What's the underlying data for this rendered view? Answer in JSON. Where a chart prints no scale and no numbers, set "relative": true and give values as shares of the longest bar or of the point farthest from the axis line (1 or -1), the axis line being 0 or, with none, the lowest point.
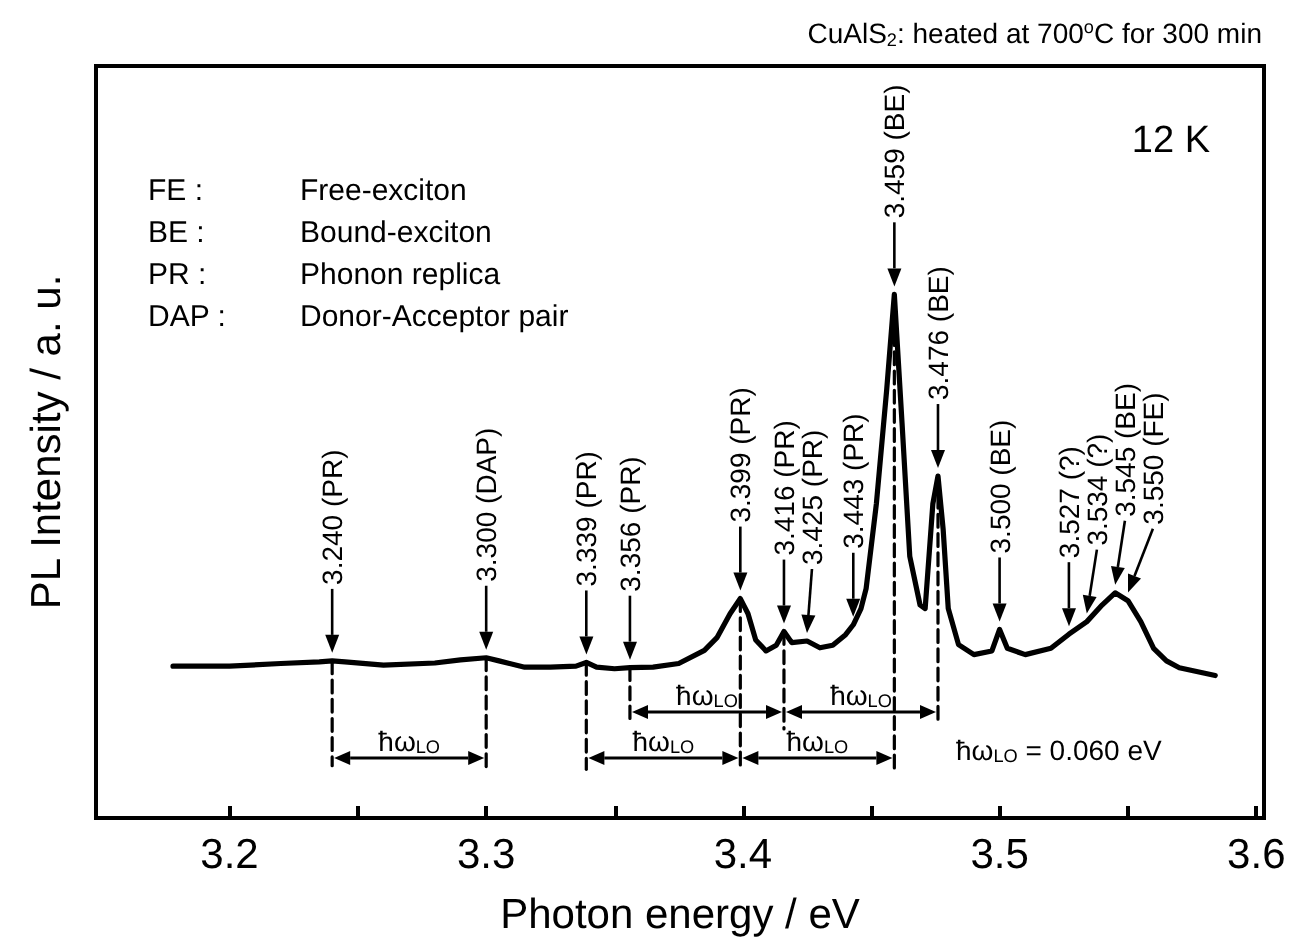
{
  "chart_data": {
    "type": "line",
    "title": "CuAlS$_{2}$: heated at 700$^{o}$C for 300 min",
    "subtitle": "12 K",
    "xlabel": "Photon energy / eV",
    "ylabel": "PL Intensity / a. u.",
    "relative": true,
    "tick_labels": "x",
    "xlim": [
      3.148,
      3.603
    ],
    "xticks": [
      3.2,
      {
        "value": 3.25,
        "label": null
      },
      3.3,
      {
        "value": 3.35,
        "label": null
      },
      3.4,
      {
        "value": 3.45,
        "label": null
      },
      3.5,
      {
        "value": 3.55,
        "label": null
      },
      3.6
    ],
    "series": [
      {
        "color": "#000000",
        "marker": "none",
        "line_style": "solid",
        "x": [
          3.178,
          3.2,
          3.22,
          3.235,
          3.24,
          3.245,
          3.26,
          3.28,
          3.29,
          3.3,
          3.305,
          3.315,
          3.325,
          3.335,
          3.339,
          3.343,
          3.35,
          3.356,
          3.365,
          3.375,
          3.385,
          3.39,
          3.395,
          3.399,
          3.402,
          3.405,
          3.409,
          3.413,
          3.416,
          3.419,
          3.425,
          3.43,
          3.435,
          3.44,
          3.443,
          3.446,
          3.448,
          3.452,
          3.456,
          3.459,
          3.462,
          3.465,
          3.469,
          3.471,
          3.474,
          3.476,
          3.478,
          3.48,
          3.484,
          3.49,
          3.497,
          3.5,
          3.503,
          3.51,
          3.52,
          3.527,
          3.534,
          3.54,
          3.545,
          3.55,
          3.555,
          3.56,
          3.565,
          3.57,
          3.584
        ],
        "values": [
          0.29,
          0.29,
          0.295,
          0.298,
          0.3,
          0.298,
          0.292,
          0.296,
          0.302,
          0.306,
          0.3,
          0.288,
          0.288,
          0.29,
          0.297,
          0.288,
          0.285,
          0.287,
          0.288,
          0.295,
          0.32,
          0.345,
          0.39,
          0.419,
          0.39,
          0.34,
          0.319,
          0.33,
          0.356,
          0.335,
          0.338,
          0.325,
          0.33,
          0.35,
          0.369,
          0.4,
          0.438,
          0.6,
          0.817,
          1.0,
          0.754,
          0.5,
          0.407,
          0.4,
          0.6,
          0.653,
          0.552,
          0.4,
          0.331,
          0.312,
          0.319,
          0.36,
          0.324,
          0.312,
          0.324,
          0.351,
          0.375,
          0.407,
          0.43,
          0.415,
          0.375,
          0.324,
          0.3,
          0.287,
          0.272
        ]
      },
      {
        "color": "#000000",
        "marker": "none",
        "line_style": "dashed",
        "x": [
          3.24,
          3.24
        ],
        "values": [
          0.3,
          0.1
        ]
      },
      {
        "color": "#000000",
        "marker": "none",
        "line_style": "dashed",
        "x": [
          3.3,
          3.3
        ],
        "values": [
          0.306,
          0.095
        ]
      },
      {
        "color": "#000000",
        "marker": "none",
        "line_style": "dashed",
        "x": [
          3.339,
          3.339
        ],
        "values": [
          0.297,
          0.093
        ]
      },
      {
        "color": "#000000",
        "marker": "none",
        "line_style": "dashed",
        "x": [
          3.356,
          3.356
        ],
        "values": [
          0.287,
          0.19
        ]
      },
      {
        "color": "#000000",
        "marker": "none",
        "line_style": "dashed",
        "x": [
          3.399,
          3.399
        ],
        "values": [
          0.419,
          0.093
        ]
      },
      {
        "color": "#000000",
        "marker": "none",
        "line_style": "dashed",
        "x": [
          3.416,
          3.416
        ],
        "values": [
          0.356,
          0.17
        ]
      },
      {
        "color": "#000000",
        "marker": "none",
        "line_style": "dashed",
        "x": [
          3.459,
          3.459
        ],
        "values": [
          1.0,
          0.093
        ]
      },
      {
        "color": "#000000",
        "marker": "none",
        "line_style": "dashed",
        "x": [
          3.476,
          3.476
        ],
        "values": [
          0.653,
          0.18
        ]
      }
    ],
    "annotations": [
      "FE : Free-exciton",
      "BE : Bound-exciton",
      "PR : Phonon replica",
      "DAP : Donor-Acceptor pair",
      "ħω$_{LO}$",
      "ħω$_{LO}$",
      "ħω$_{LO}$",
      "ħω$_{LO}$",
      "ħω$_{LO}$",
      "ħω$_{LO}$ = 0.060 eV",
      {
        "text": "3.240 (PR)",
        "x": 3.24,
        "y": 0.3
      },
      {
        "text": "3.300 (DAP)",
        "x": 3.3,
        "y": 0.306
      },
      {
        "text": "3.339 (PR)",
        "x": 3.339,
        "y": 0.297
      },
      {
        "text": "3.356 (PR)",
        "x": 3.356,
        "y": 0.287
      },
      {
        "text": "3.399 (PR)",
        "x": 3.399,
        "y": 0.419
      },
      {
        "text": "3.416 (PR)",
        "x": 3.416,
        "y": 0.356
      },
      {
        "text": "3.425 (PR)",
        "x": 3.425,
        "y": 0.338
      },
      {
        "text": "3.443 (PR)",
        "x": 3.443,
        "y": 0.369
      },
      {
        "text": "3.459 (BE)",
        "x": 3.459,
        "y": 1.0
      },
      {
        "text": "3.476 (BE)",
        "x": 3.476,
        "y": 0.653
      },
      {
        "text": "3.500 (BE)",
        "x": 3.5,
        "y": 0.36
      },
      {
        "text": "3.527 (?)",
        "x": 3.527,
        "y": 0.351
      },
      {
        "text": "3.534 (?)",
        "x": 3.534,
        "y": 0.375
      },
      {
        "text": "3.545 (BE)",
        "x": 3.545,
        "y": 0.43
      },
      {
        "text": "3.550 (FE)",
        "x": 3.55,
        "y": 0.415
      }
    ]
  }
}
